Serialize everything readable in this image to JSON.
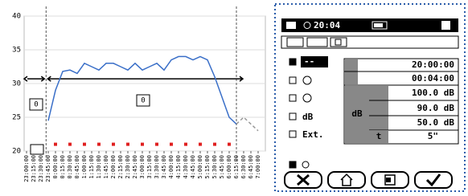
{
  "chart_data": {
    "type": "line",
    "categories": [
      "23:00:00",
      "23:15:00",
      "23:30:00",
      "23:45:00",
      "0:00:00",
      "0:15:00",
      "0:30:00",
      "0:45:00",
      "1:00:00",
      "1:15:00",
      "1:30:00",
      "1:45:00",
      "2:00:00",
      "2:15:00",
      "2:30:00",
      "2:45:00",
      "3:00:00",
      "3:15:00",
      "3:30:00",
      "3:45:00",
      "4:00:00",
      "4:15:00",
      "4:30:00",
      "4:45:00",
      "5:00:00",
      "5:15:00",
      "5:30:00",
      "5:45:00",
      "6:00:00",
      "6:15:00",
      "6:30:00",
      "6:45:00",
      "7:00:00"
    ],
    "series": [
      {
        "color": "#3a6fc8",
        "style": "solid",
        "values": [
          null,
          null,
          null,
          24.5,
          29,
          31.8,
          32,
          31.5,
          33,
          32.5,
          32,
          33,
          33,
          32.5,
          32,
          33,
          32,
          32.5,
          33,
          32,
          33.5,
          34,
          34,
          33.5,
          34,
          33.5,
          31,
          28,
          25,
          24,
          null,
          null,
          null
        ]
      },
      {
        "color": "#999999",
        "style": "dashed",
        "values": [
          null,
          null,
          null,
          null,
          null,
          null,
          null,
          null,
          null,
          null,
          null,
          null,
          null,
          null,
          null,
          null,
          null,
          null,
          null,
          null,
          null,
          null,
          null,
          null,
          null,
          null,
          null,
          null,
          null,
          24,
          25,
          24,
          23
        ]
      },
      {
        "color": "#e02020",
        "style": "markers",
        "values": [
          null,
          null,
          null,
          null,
          21,
          null,
          21,
          null,
          21,
          null,
          21,
          null,
          21,
          null,
          21,
          null,
          21,
          null,
          21,
          null,
          21,
          null,
          21,
          null,
          21,
          null,
          21,
          null,
          21,
          null,
          null,
          null,
          null
        ]
      }
    ],
    "annotations": [
      "0",
      "0"
    ],
    "ylim": [
      20,
      40
    ],
    "yticks": [
      20,
      25,
      30,
      35,
      40
    ],
    "grid": true
  },
  "panel": {
    "clock": "20:04",
    "modes": [
      "--",
      "dB",
      "Ext."
    ],
    "table": {
      "start": "20:00:00",
      "duration": "00:04:00",
      "levels": [
        "100.0 dB",
        "90.0 dB",
        "50.0 dB"
      ],
      "unit": "dB",
      "t_label": "t",
      "t_value": "5\""
    }
  }
}
